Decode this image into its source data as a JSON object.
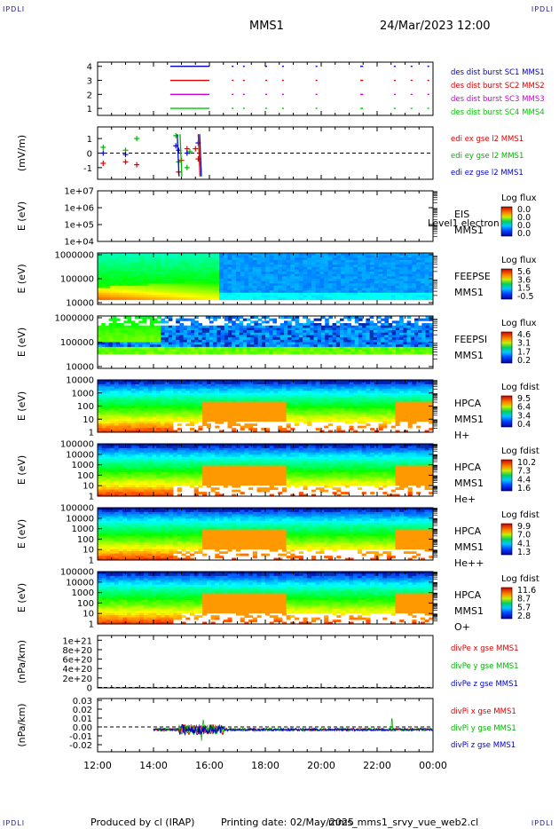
{
  "corner_label": "IPDLI",
  "header": {
    "spacecraft": "MMS1",
    "date": "24/Mar/2023 12:00"
  },
  "footer": {
    "produced": "Produced by cl (IRAP)",
    "printing": "Printing date: 02/May/2025",
    "script": "mms_mms1_srvy_vue_web2.cl"
  },
  "chart_data": [
    {
      "type": "line",
      "name": "burst-availability",
      "x_ticks": [
        "12:00",
        "14:00",
        "16:00",
        "18:00",
        "20:00",
        "22:00",
        "00:00"
      ],
      "ylim": [
        0.5,
        4.3
      ],
      "yticks": [
        "1",
        "2",
        "3",
        "4"
      ],
      "series": [
        {
          "name": "des dist burst SC1 MMS1",
          "color": "#0000c8",
          "level": 4
        },
        {
          "name": "des dist burst SC2 MMS2",
          "color": "#e00000",
          "level": 3
        },
        {
          "name": "des dist burst SC3 MMS3",
          "color": "#d000d0",
          "level": 2
        },
        {
          "name": "des dist burst SC4 MMS4",
          "color": "#00c800",
          "level": 1
        }
      ],
      "intervals": [
        [
          14.6,
          16.0
        ],
        [
          16.8,
          16.8
        ],
        [
          17.2,
          17.2
        ],
        [
          18.0,
          18.0
        ],
        [
          18.6,
          18.6
        ],
        [
          19.8,
          19.8
        ],
        [
          21.4,
          21.5
        ],
        [
          22.6,
          22.6
        ],
        [
          23.2,
          23.2
        ],
        [
          23.8,
          23.8
        ]
      ]
    },
    {
      "type": "scatter",
      "name": "edi-efield",
      "ylabel": "(mV/m)",
      "ylim": [
        -1.8,
        1.8
      ],
      "yticks": [
        "-1",
        "0",
        "1"
      ],
      "series": [
        {
          "name": "edi ex gse l2 MMS1",
          "color": "#e00000",
          "x": [
            12.2,
            13.0,
            13.4,
            14.9,
            15.0,
            15.2,
            15.5,
            15.6
          ],
          "y": [
            -0.7,
            -0.6,
            -0.8,
            -1.3,
            -0.5,
            0.3,
            0.3,
            -0.4
          ]
        },
        {
          "name": "edi ey gse l2 MMS1",
          "color": "#00b400",
          "x": [
            12.2,
            13.0,
            13.4,
            14.8,
            14.9,
            15.2,
            15.3
          ],
          "y": [
            0.4,
            0.2,
            1.0,
            1.2,
            -0.6,
            -1.0,
            0.1
          ]
        },
        {
          "name": "edi ez gse l2 MMS1",
          "color": "#0000c8",
          "x": [
            12.2,
            13.0,
            14.8,
            14.9,
            15.2,
            15.6
          ],
          "y": [
            0.0,
            -0.1,
            0.5,
            0.2,
            0.0,
            0.7
          ]
        }
      ]
    },
    {
      "type": "heatmap",
      "name": "EIS",
      "ylabel": "E (eV)",
      "log_y": true,
      "yticks": [
        "1e+04",
        "1e+05",
        "1e+06",
        "1e+07"
      ],
      "labels": [
        "EIS",
        "MMS1"
      ],
      "overlay": "Level1 electron to",
      "colorbar": {
        "title": "Log flux",
        "ticks": [
          "0.0",
          "0.0",
          "0.0",
          "0.0"
        ]
      }
    },
    {
      "type": "heatmap",
      "name": "FEEPSE",
      "ylabel": "E (eV)",
      "log_y": true,
      "yticks": [
        "10000",
        "100000",
        "1000000"
      ],
      "labels": [
        "FEEPSE",
        "MMS1"
      ],
      "colorbar": {
        "title": "Log flux",
        "ticks": [
          "5.6",
          "3.6",
          "1.5",
          "-0.5"
        ]
      }
    },
    {
      "type": "heatmap",
      "name": "FEEPSI",
      "ylabel": "E (eV)",
      "log_y": true,
      "yticks": [
        "10000",
        "100000",
        "1000000"
      ],
      "labels": [
        "FEEPSI",
        "MMS1"
      ],
      "colorbar": {
        "title": "Log flux",
        "ticks": [
          "4.6",
          "3.1",
          "1.7",
          "0.2"
        ]
      }
    },
    {
      "type": "heatmap",
      "name": "HPCA-H",
      "ylabel": "E (eV)",
      "log_y": true,
      "yticks": [
        "1",
        "10",
        "100",
        "1000",
        "10000"
      ],
      "labels": [
        "HPCA",
        "MMS1",
        "H+"
      ],
      "colorbar": {
        "title": "Log fdist",
        "ticks": [
          "9.5",
          "6.4",
          "3.4",
          "0.4"
        ]
      }
    },
    {
      "type": "heatmap",
      "name": "HPCA-He",
      "ylabel": "E (eV)",
      "log_y": true,
      "yticks": [
        "1",
        "10",
        "100",
        "1000",
        "10000",
        "100000"
      ],
      "labels": [
        "HPCA",
        "MMS1",
        "He+"
      ],
      "colorbar": {
        "title": "Log fdist",
        "ticks": [
          "10.2",
          "7.3",
          "4.4",
          "1.6"
        ]
      }
    },
    {
      "type": "heatmap",
      "name": "HPCA-He2",
      "ylabel": "E (eV)",
      "log_y": true,
      "yticks": [
        "1",
        "10",
        "100",
        "1000",
        "10000",
        "100000"
      ],
      "labels": [
        "HPCA",
        "MMS1",
        "He++"
      ],
      "colorbar": {
        "title": "Log fdist",
        "ticks": [
          "9.9",
          "7.0",
          "4.1",
          "1.3"
        ]
      }
    },
    {
      "type": "heatmap",
      "name": "HPCA-O",
      "ylabel": "E (eV)",
      "log_y": true,
      "yticks": [
        "1",
        "10",
        "100",
        "1000",
        "10000",
        "100000"
      ],
      "labels": [
        "HPCA",
        "MMS1",
        "O+"
      ],
      "colorbar": {
        "title": "Log fdist",
        "ticks": [
          "11.6",
          "8.7",
          "5.7",
          "2.8"
        ]
      }
    },
    {
      "type": "line",
      "name": "divPe",
      "ylabel": "(nPa/km)",
      "ylim": [
        -1e+19,
        1.1e+21
      ],
      "yticks": [
        "0",
        "2e+20",
        "4e+20",
        "6e+20",
        "8e+20",
        "1e+21"
      ],
      "series": [
        {
          "name": "divPe x gse MMS1",
          "color": "#e00000"
        },
        {
          "name": "divPe y gse MMS1",
          "color": "#00b400"
        },
        {
          "name": "divPe z gse MMS1",
          "color": "#0000c8"
        }
      ]
    },
    {
      "type": "line",
      "name": "divPi",
      "ylabel": "(nPa/km)",
      "ylim": [
        -0.028,
        0.032
      ],
      "yticks": [
        "-0.02",
        "-0.01",
        "0.00",
        "0.01",
        "0.02",
        "0.03"
      ],
      "series": [
        {
          "name": "divPi x gse MMS1",
          "color": "#e00000"
        },
        {
          "name": "divPi y gse MMS1",
          "color": "#00b400"
        },
        {
          "name": "divPi z gse MMS1",
          "color": "#0000c8"
        }
      ]
    }
  ]
}
